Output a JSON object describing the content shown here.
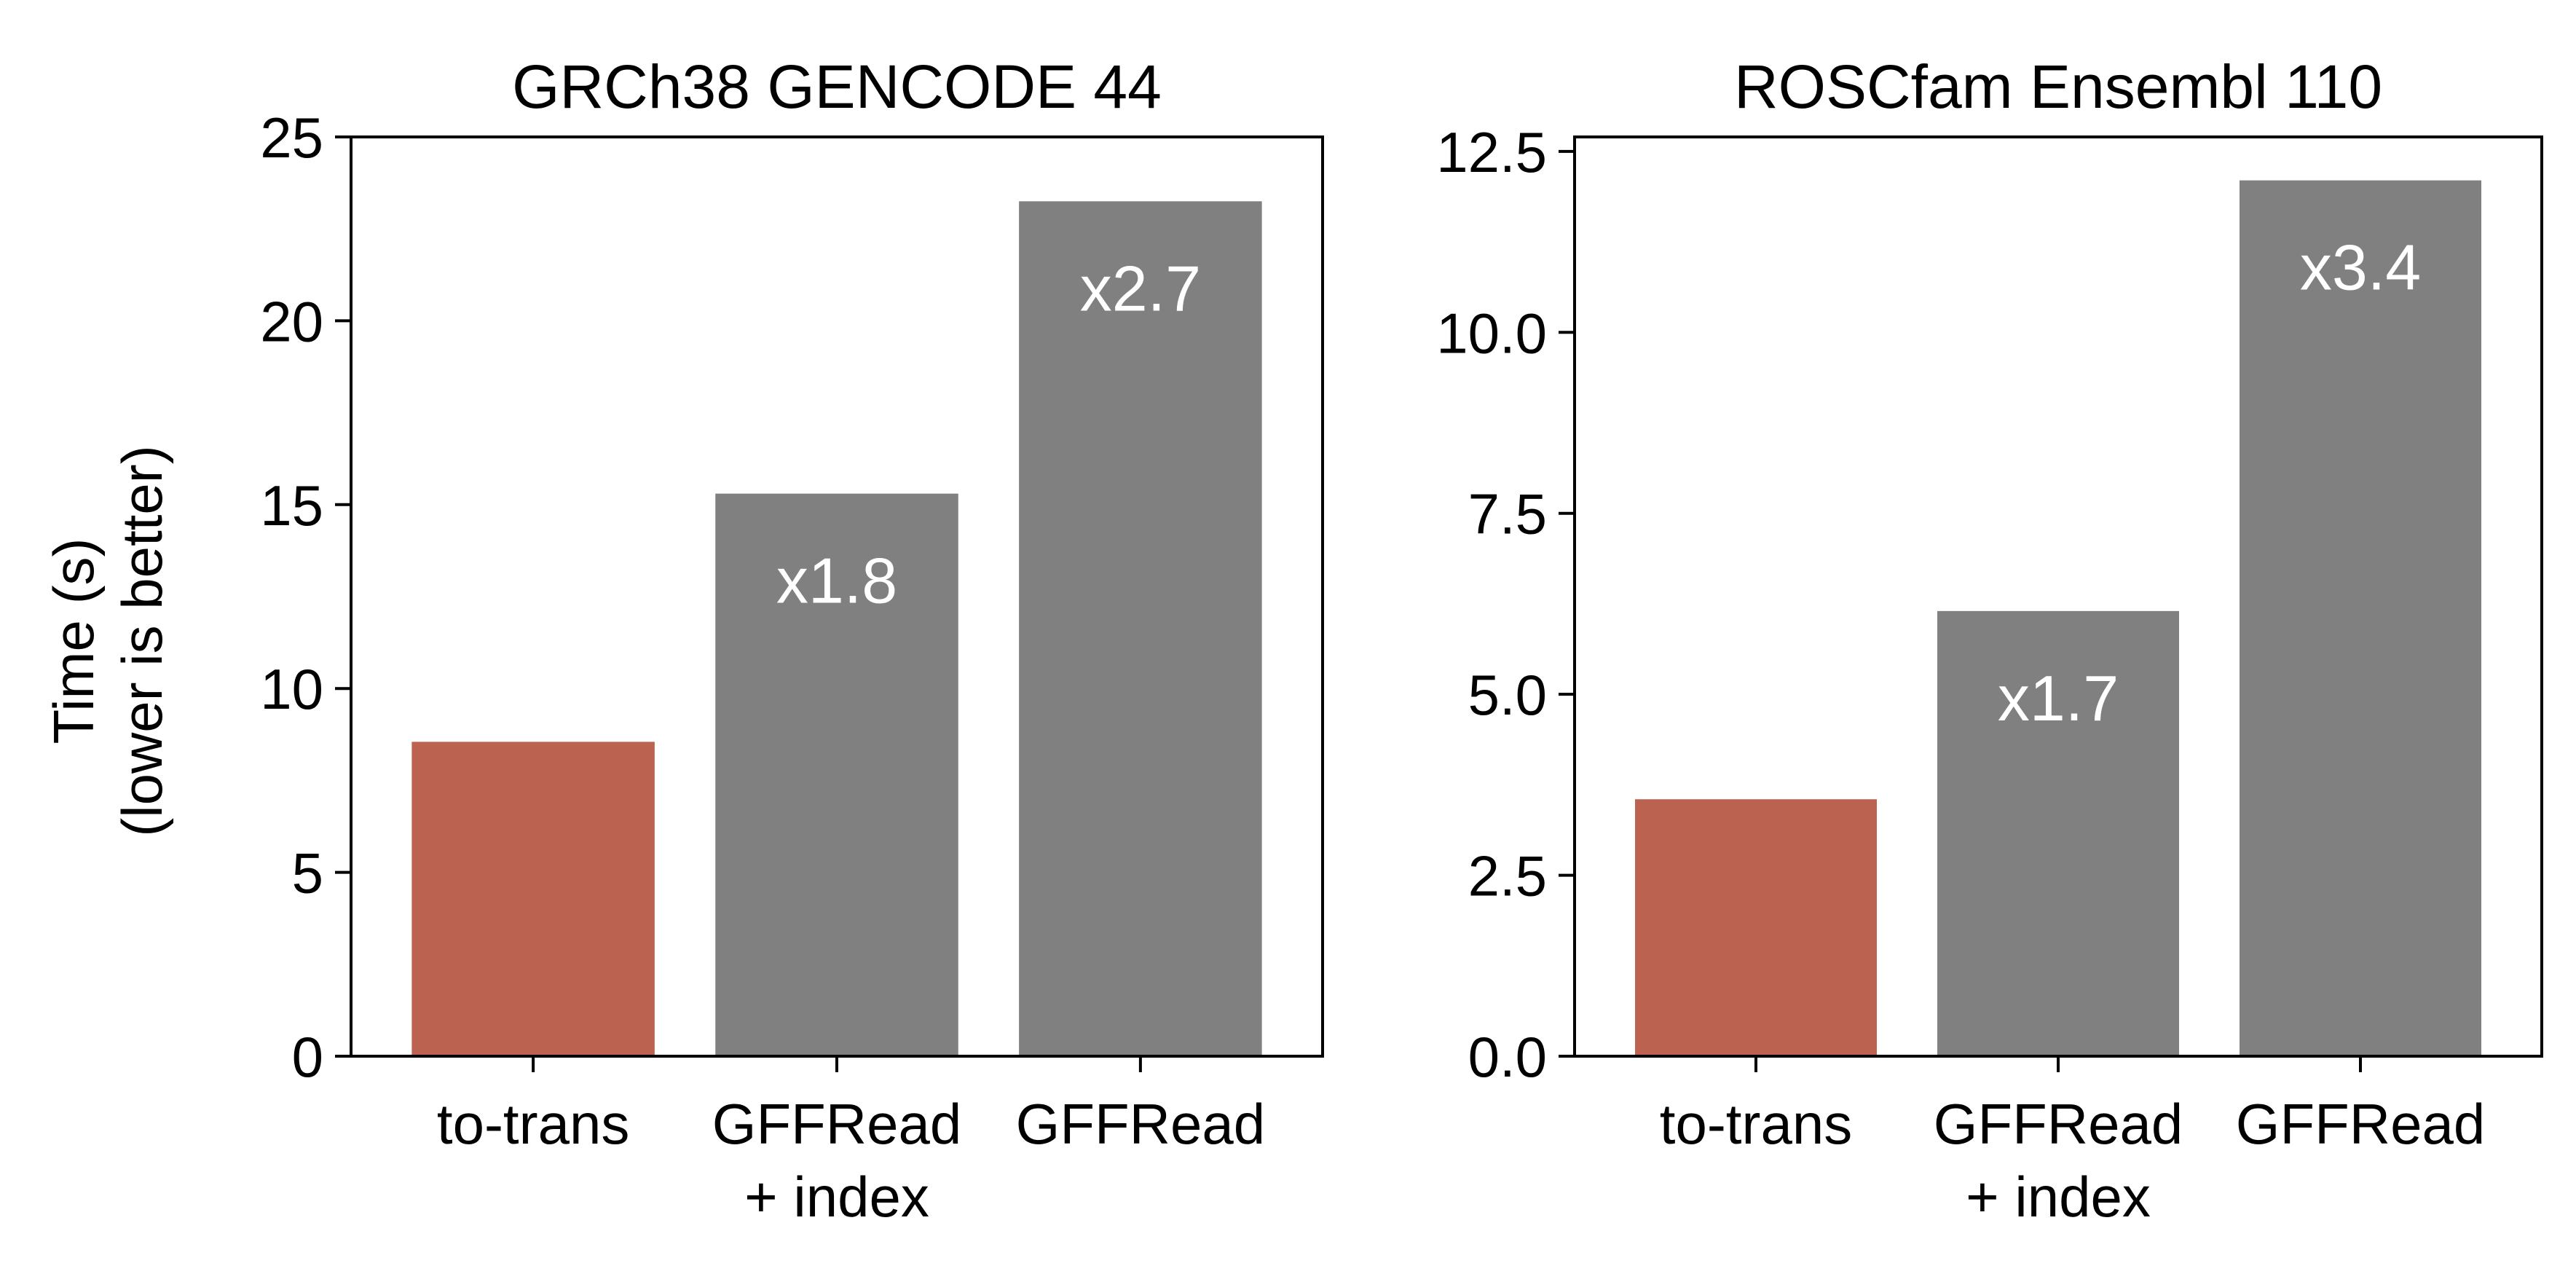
{
  "figure": {
    "ylabel_line1": "Time (s)",
    "ylabel_line2": "(lower is better)"
  },
  "colors": {
    "highlight": "#bb6350",
    "baseline": "#808080",
    "annotation": "#ffffff",
    "axis": "#000000"
  },
  "chart_data": [
    {
      "type": "bar",
      "title": "GRCh38 GENCODE 44",
      "xlabel": "",
      "ylabel": "Time (s)\n(lower is better)",
      "categories": [
        [
          "to-trans"
        ],
        [
          "GFFRead",
          "+ index"
        ],
        [
          "GFFRead"
        ]
      ],
      "values": [
        8.55,
        15.3,
        23.25
      ],
      "annotations": [
        "",
        "x1.8",
        "x2.7"
      ],
      "bar_colors": [
        "#bb6350",
        "#808080",
        "#808080"
      ],
      "ylim": [
        0,
        25
      ],
      "yticks": [
        0,
        5,
        10,
        15,
        20,
        25
      ],
      "ytick_labels": [
        "0",
        "5",
        "10",
        "15",
        "20",
        "25"
      ],
      "grid": false,
      "legend": "none"
    },
    {
      "type": "bar",
      "title": "ROSCfam Ensembl 110",
      "xlabel": "",
      "ylabel": "",
      "categories": [
        [
          "to-trans"
        ],
        [
          "GFFRead",
          "+ index"
        ],
        [
          "GFFRead"
        ]
      ],
      "values": [
        3.55,
        6.15,
        12.1
      ],
      "annotations": [
        "",
        "x1.7",
        "x3.4"
      ],
      "bar_colors": [
        "#bb6350",
        "#808080",
        "#808080"
      ],
      "ylim": [
        0,
        12.7
      ],
      "yticks": [
        0,
        2.5,
        5,
        7.5,
        10,
        12.5
      ],
      "ytick_labels": [
        "0.0",
        "2.5",
        "5.0",
        "7.5",
        "10.0",
        "12.5"
      ],
      "grid": false,
      "legend": "none"
    }
  ]
}
